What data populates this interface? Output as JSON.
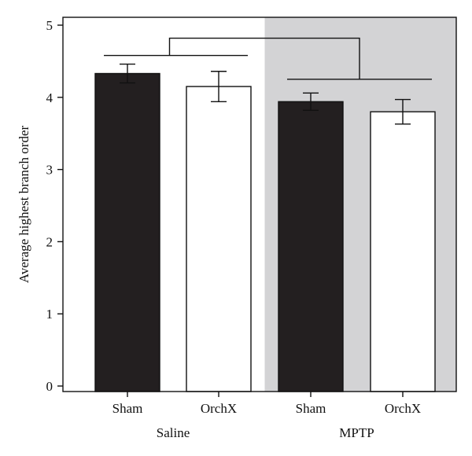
{
  "chart_data": {
    "type": "bar",
    "title": "",
    "xlabel": "",
    "ylabel": "Average highest branch order",
    "ylim": [
      0,
      5
    ],
    "yticks": [
      "0",
      "1",
      "2",
      "3",
      "4",
      "5"
    ],
    "grid": false,
    "categories": [
      "Sham",
      "OrchX",
      "Sham",
      "OrchX"
    ],
    "groups": [
      {
        "label": "Saline",
        "categories": [
          0,
          1
        ],
        "shaded": false
      },
      {
        "label": "MPTP",
        "categories": [
          2,
          3
        ],
        "shaded": true
      }
    ],
    "values": [
      4.33,
      4.15,
      3.94,
      3.8
    ],
    "errors": [
      0.13,
      0.21,
      0.12,
      0.17
    ],
    "bar_colors": [
      "#231f20",
      "#ffffff",
      "#231f20",
      "#ffffff"
    ],
    "shade_color": "#d3d3d5",
    "comparison_brackets": [
      {
        "between": [
          0,
          1
        ],
        "level": 4.58
      },
      {
        "between": [
          2,
          3
        ],
        "level": 4.25
      },
      {
        "between_brackets": [
          0,
          1
        ],
        "level": 4.82
      }
    ]
  }
}
